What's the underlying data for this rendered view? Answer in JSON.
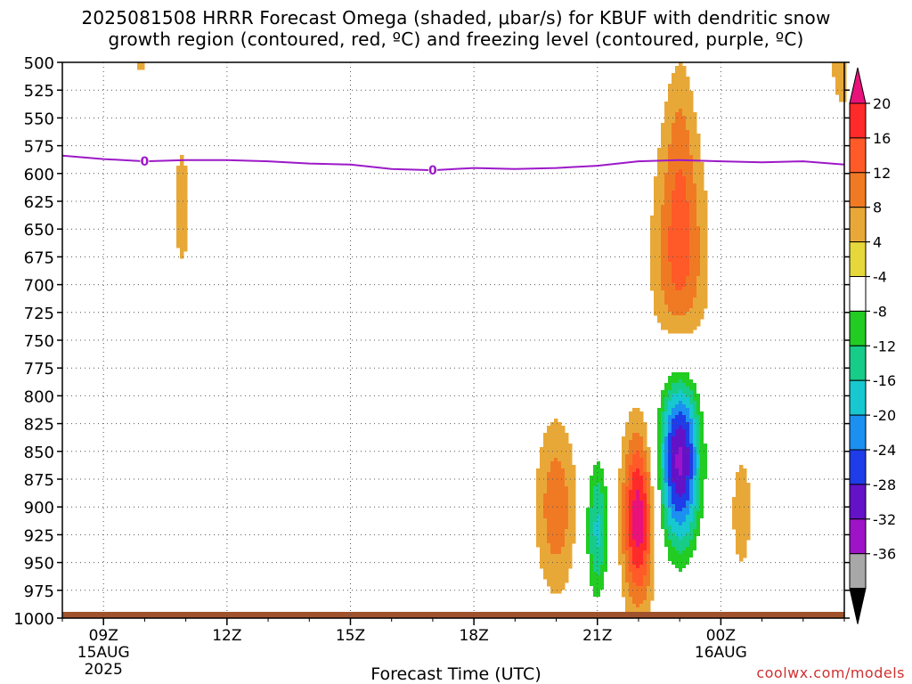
{
  "page": {
    "title_line1": "2025081508 HRRR Forecast Omega (shaded, μbar/s) for KBUF with dendritic snow",
    "title_line2": "growth region (contoured, red, ºC) and freezing level (contoured, purple, ºC)",
    "xlabel": "Forecast Time (UTC)",
    "credit": "coolwx.com/models"
  },
  "chart_data": {
    "type": "heatmap",
    "title": "2025081508 HRRR Forecast Omega (shaded, μbar/s) for KBUF with dendritic snow growth region (contoured, red, ºC) and freezing level (contoured, purple, ºC)",
    "xlabel": "Forecast Time (UTC)",
    "ylabel": "",
    "x_unit": "hours UTC from 00Z 15AUG2025",
    "xlim": [
      8,
      27
    ],
    "ylim": [
      1000,
      500
    ],
    "y_ticks": [
      500,
      525,
      550,
      575,
      600,
      625,
      650,
      675,
      700,
      725,
      750,
      775,
      800,
      825,
      850,
      875,
      900,
      925,
      950,
      975,
      1000
    ],
    "x_ticks": [
      {
        "value": 9,
        "label": "09Z",
        "sub": [
          "15AUG",
          "2025"
        ]
      },
      {
        "value": 12,
        "label": "12Z",
        "sub": []
      },
      {
        "value": 15,
        "label": "15Z",
        "sub": []
      },
      {
        "value": 18,
        "label": "18Z",
        "sub": []
      },
      {
        "value": 21,
        "label": "21Z",
        "sub": []
      },
      {
        "value": 24,
        "label": "00Z",
        "sub": [
          "16AUG"
        ]
      }
    ],
    "grid": true,
    "colorbar": {
      "labels": [
        "20",
        "16",
        "12",
        "8",
        "4",
        "-4",
        "-8",
        "-12",
        "-16",
        "-20",
        "-24",
        "-28",
        "-32",
        "-36"
      ],
      "bounds": [
        20,
        16,
        12,
        8,
        4,
        -4,
        -8,
        -12,
        -16,
        -20,
        -24,
        -28,
        -32,
        -36
      ],
      "colors": [
        "#ff2a2a",
        "#ff5a28",
        "#f07a24",
        "#e8a838",
        "#e6d83a",
        "#ffffff",
        "#22cc22",
        "#16cc88",
        "#18c8d0",
        "#1c90f0",
        "#1e3ce8",
        "#6412c8",
        "#9e12c8",
        "#a8a8a8"
      ],
      "top_color": "#e8127a",
      "bottom_color": "#000000"
    },
    "freezing_level": {
      "label": "0",
      "color": "#9c19c8",
      "x": [
        8,
        9,
        10,
        11,
        12,
        13,
        14,
        15,
        16,
        17,
        18,
        19,
        20,
        21,
        22,
        23,
        24,
        25,
        26,
        27
      ],
      "y": [
        584,
        587,
        589,
        588,
        588,
        589,
        591,
        592,
        596,
        597,
        595,
        596,
        595,
        593,
        589,
        588,
        589,
        590,
        589,
        592
      ],
      "label_x": [
        10,
        17
      ]
    },
    "ground": {
      "color": "#a0522d",
      "pressure": 1000
    },
    "omega_cells": [
      {
        "x": 9.0,
        "p": 925,
        "sx": 0.15,
        "sp": 20,
        "peak": -7
      },
      {
        "x": 10.9,
        "p": 630,
        "sx": 0.18,
        "sp": 60,
        "peak": 5.5
      },
      {
        "x": 9.9,
        "p": 500,
        "sx": 0.12,
        "sp": 10,
        "peak": 5
      },
      {
        "x": 27.0,
        "p": 505,
        "sx": 0.3,
        "sp": 35,
        "peak": 6
      },
      {
        "x": 23.0,
        "p": 680,
        "sx": 0.45,
        "sp": 80,
        "peak": 14
      },
      {
        "x": 23.0,
        "p": 560,
        "sx": 0.25,
        "sp": 55,
        "peak": 5
      },
      {
        "x": 20.0,
        "p": 900,
        "sx": 0.35,
        "sp": 55,
        "peak": 11
      },
      {
        "x": 21.0,
        "p": 920,
        "sx": 0.22,
        "sp": 50,
        "peak": -17
      },
      {
        "x": 22.0,
        "p": 910,
        "sx": 0.28,
        "sp": 55,
        "peak": 23
      },
      {
        "x": 23.0,
        "p": 855,
        "sx": 0.38,
        "sp": 60,
        "peak": -34
      },
      {
        "x": 24.5,
        "p": 905,
        "sx": 0.25,
        "sp": 55,
        "peak": 5.5
      }
    ]
  }
}
